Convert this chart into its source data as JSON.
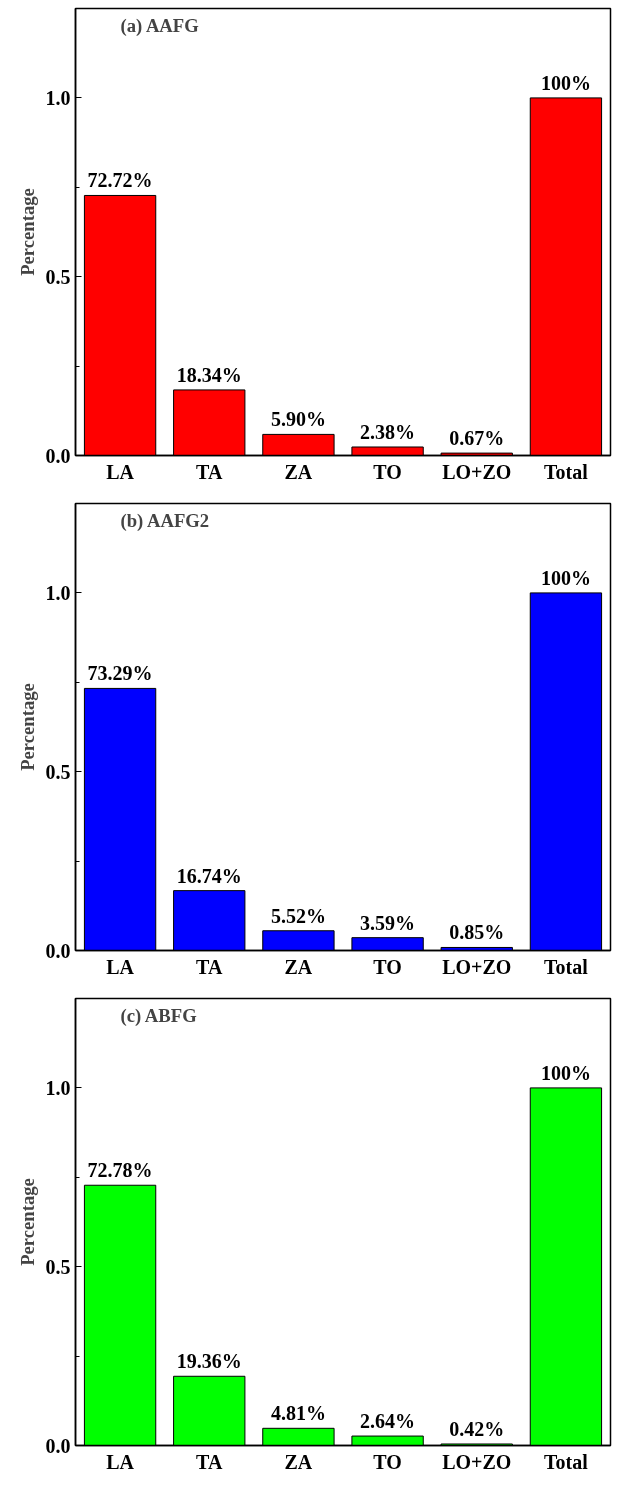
{
  "chart_data": [
    {
      "type": "bar",
      "title": "(a) AAFG",
      "ylabel": "Percentage",
      "categories": [
        "LA",
        "TA",
        "ZA",
        "TO",
        "LO+ZO",
        "Total"
      ],
      "series": [
        {
          "color": "#ff0000",
          "values": [
            0.7272,
            0.1834,
            0.059,
            0.0238,
            0.0067,
            1.0
          ],
          "value_labels": [
            "72.72%",
            "18.34%",
            "5.90%",
            "2.38%",
            "0.67%",
            "100%"
          ]
        }
      ],
      "ylim": [
        0,
        1.25
      ],
      "yticks": [
        {
          "value": 0,
          "label": "0.0"
        },
        {
          "value": 0.25,
          "label": null
        },
        {
          "value": 0.5,
          "label": "0.5"
        },
        {
          "value": 0.75,
          "label": null
        },
        {
          "value": 1.0,
          "label": "1.0"
        }
      ],
      "grid": false
    },
    {
      "type": "bar",
      "title": "(b) AAFG2",
      "ylabel": "Percentage",
      "categories": [
        "LA",
        "TA",
        "ZA",
        "TO",
        "LO+ZO",
        "Total"
      ],
      "series": [
        {
          "color": "#0000ff",
          "values": [
            0.7329,
            0.1674,
            0.0552,
            0.0359,
            0.0085,
            1.0
          ],
          "value_labels": [
            "73.29%",
            "16.74%",
            "5.52%",
            "3.59%",
            "0.85%",
            "100%"
          ]
        }
      ],
      "ylim": [
        0,
        1.25
      ],
      "yticks": [
        {
          "value": 0,
          "label": "0.0"
        },
        {
          "value": 0.25,
          "label": null
        },
        {
          "value": 0.5,
          "label": "0.5"
        },
        {
          "value": 0.75,
          "label": null
        },
        {
          "value": 1.0,
          "label": "1.0"
        }
      ],
      "grid": false
    },
    {
      "type": "bar",
      "title": "(c) ABFG",
      "ylabel": "Percentage",
      "categories": [
        "LA",
        "TA",
        "ZA",
        "TO",
        "LO+ZO",
        "Total"
      ],
      "series": [
        {
          "color": "#00ff00",
          "values": [
            0.7278,
            0.1936,
            0.0481,
            0.0264,
            0.0042,
            1.0
          ],
          "value_labels": [
            "72.78%",
            "19.36%",
            "4.81%",
            "2.64%",
            "0.42%",
            "100%"
          ]
        }
      ],
      "ylim": [
        0,
        1.25
      ],
      "yticks": [
        {
          "value": 0,
          "label": "0.0"
        },
        {
          "value": 0.25,
          "label": null
        },
        {
          "value": 0.5,
          "label": "0.5"
        },
        {
          "value": 0.75,
          "label": null
        },
        {
          "value": 1.0,
          "label": "1.0"
        }
      ],
      "grid": false
    }
  ]
}
